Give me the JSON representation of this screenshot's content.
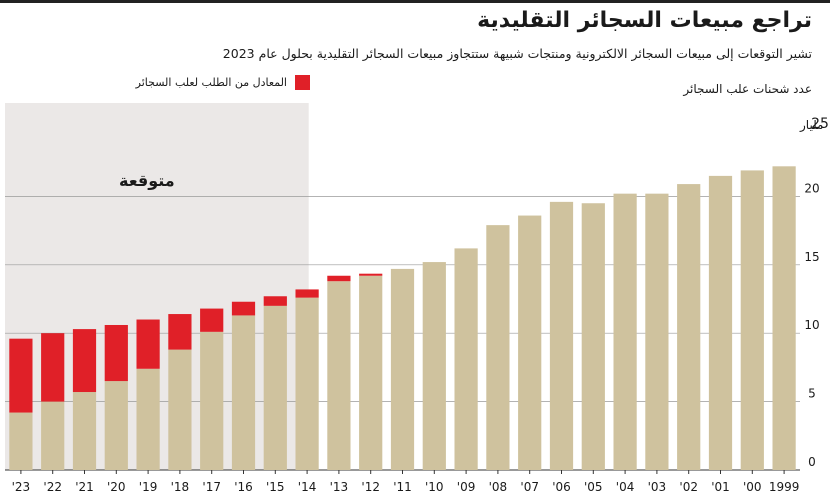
{
  "header": {
    "title": "تراجع مبيعات السجائر التقليدية",
    "subtitle": "تشير التوقعات إلى مبيعات السجائر الالكترونية ومنتجات شبيهة ستتجاوز مبيعات السجائر التقليدية بحلول عام 2023"
  },
  "colors": {
    "tan": "#cfc29e",
    "red": "#e02028",
    "shade": "#ebe8e7"
  },
  "chart_data": {
    "type": "bar",
    "stacked": true,
    "ylabel": "عدد شحنات علب السجائر",
    "unit": "مليار",
    "forecast_label": "متوقعة",
    "categories": [
      "1999",
      "'00",
      "'01",
      "'02",
      "'03",
      "'04",
      "'05",
      "'06",
      "'07",
      "'08",
      "'09",
      "'10",
      "'11",
      "'12",
      "'13",
      "'14",
      "'15",
      "'16",
      "'17",
      "'18",
      "'19",
      "'20",
      "'21",
      "'22",
      "'23"
    ],
    "series": [
      {
        "name": "",
        "color": "#cfc29e",
        "values": [
          22.2,
          21.9,
          21.5,
          20.9,
          20.2,
          20.2,
          19.5,
          19.6,
          18.6,
          17.9,
          16.2,
          15.2,
          14.7,
          14.2,
          13.8,
          12.6,
          12.0,
          11.3,
          10.1,
          8.8,
          7.4,
          6.5,
          5.7,
          5.0,
          4.2
        ]
      },
      {
        "name": "المعادل من الطلب لعلب السجائر",
        "color": "#e02028",
        "values": [
          0,
          0,
          0,
          0,
          0,
          0,
          0,
          0,
          0,
          0,
          0,
          0,
          0,
          0.15,
          0.4,
          0.6,
          0.7,
          1.0,
          1.7,
          2.6,
          3.6,
          4.1,
          4.6,
          5.0,
          5.4
        ]
      }
    ],
    "ylim": [
      0,
      25
    ],
    "yticks": [
      0,
      5,
      10,
      15,
      20,
      25
    ],
    "forecast_categories": [
      "'14",
      "'15",
      "'16",
      "'17",
      "'18",
      "'19",
      "'20",
      "'21",
      "'22",
      "'23"
    ],
    "grid": true,
    "legend": "top"
  }
}
